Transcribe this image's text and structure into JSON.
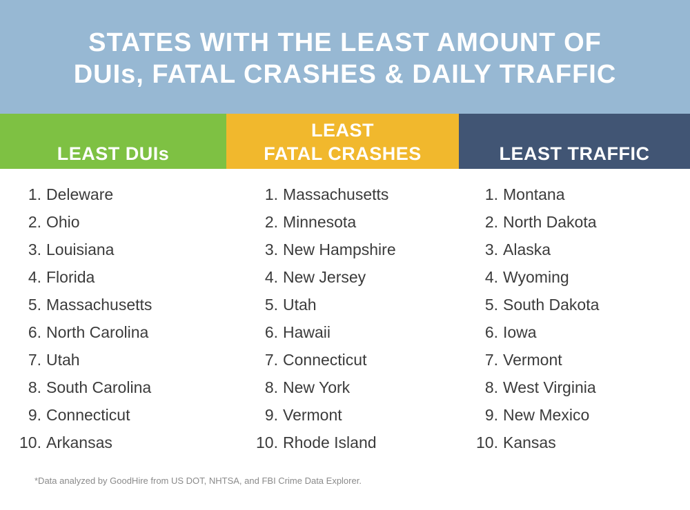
{
  "title": {
    "line1": "STATES WITH THE LEAST AMOUNT OF",
    "line2": "DUIs, FATAL CRASHES & DAILY TRAFFIC"
  },
  "columns": [
    {
      "header_lines": [
        "LEAST DUIs"
      ],
      "color": "#7ec143",
      "items": [
        {
          "num": "1.",
          "name": "Deleware"
        },
        {
          "num": "2.",
          "name": "Ohio"
        },
        {
          "num": "3.",
          "name": "Louisiana"
        },
        {
          "num": "4.",
          "name": "Florida"
        },
        {
          "num": "5.",
          "name": "Massachusetts"
        },
        {
          "num": "6.",
          "name": "North Carolina"
        },
        {
          "num": "7.",
          "name": "Utah"
        },
        {
          "num": "8.",
          "name": "South Carolina"
        },
        {
          "num": "9.",
          "name": "Connecticut"
        },
        {
          "num": "10.",
          "name": "Arkansas"
        }
      ]
    },
    {
      "header_lines": [
        "LEAST",
        "FATAL CRASHES"
      ],
      "color": "#f1b82d",
      "items": [
        {
          "num": "1.",
          "name": "Massachusetts"
        },
        {
          "num": "2.",
          "name": "Minnesota"
        },
        {
          "num": "3.",
          "name": "New Hampshire"
        },
        {
          "num": "4.",
          "name": "New Jersey"
        },
        {
          "num": "5.",
          "name": "Utah"
        },
        {
          "num": "6.",
          "name": "Hawaii"
        },
        {
          "num": "7.",
          "name": "Connecticut"
        },
        {
          "num": "8.",
          "name": "New York"
        },
        {
          "num": "9.",
          "name": "Vermont"
        },
        {
          "num": "10.",
          "name": "Rhode Island"
        }
      ]
    },
    {
      "header_lines": [
        "LEAST TRAFFIC"
      ],
      "color": "#415574",
      "items": [
        {
          "num": "1.",
          "name": "Montana"
        },
        {
          "num": "2.",
          "name": "North Dakota"
        },
        {
          "num": "3.",
          "name": "Alaska"
        },
        {
          "num": "4.",
          "name": "Wyoming"
        },
        {
          "num": "5.",
          "name": "South Dakota"
        },
        {
          "num": "6.",
          "name": "Iowa"
        },
        {
          "num": "7.",
          "name": "Vermont"
        },
        {
          "num": "8.",
          "name": "West Virginia"
        },
        {
          "num": "9.",
          "name": "New Mexico"
        },
        {
          "num": "10.",
          "name": "Kansas"
        }
      ]
    }
  ],
  "footnote": "*Data analyzed by GoodHire from US DOT, NHTSA, and FBI Crime Data Explorer."
}
